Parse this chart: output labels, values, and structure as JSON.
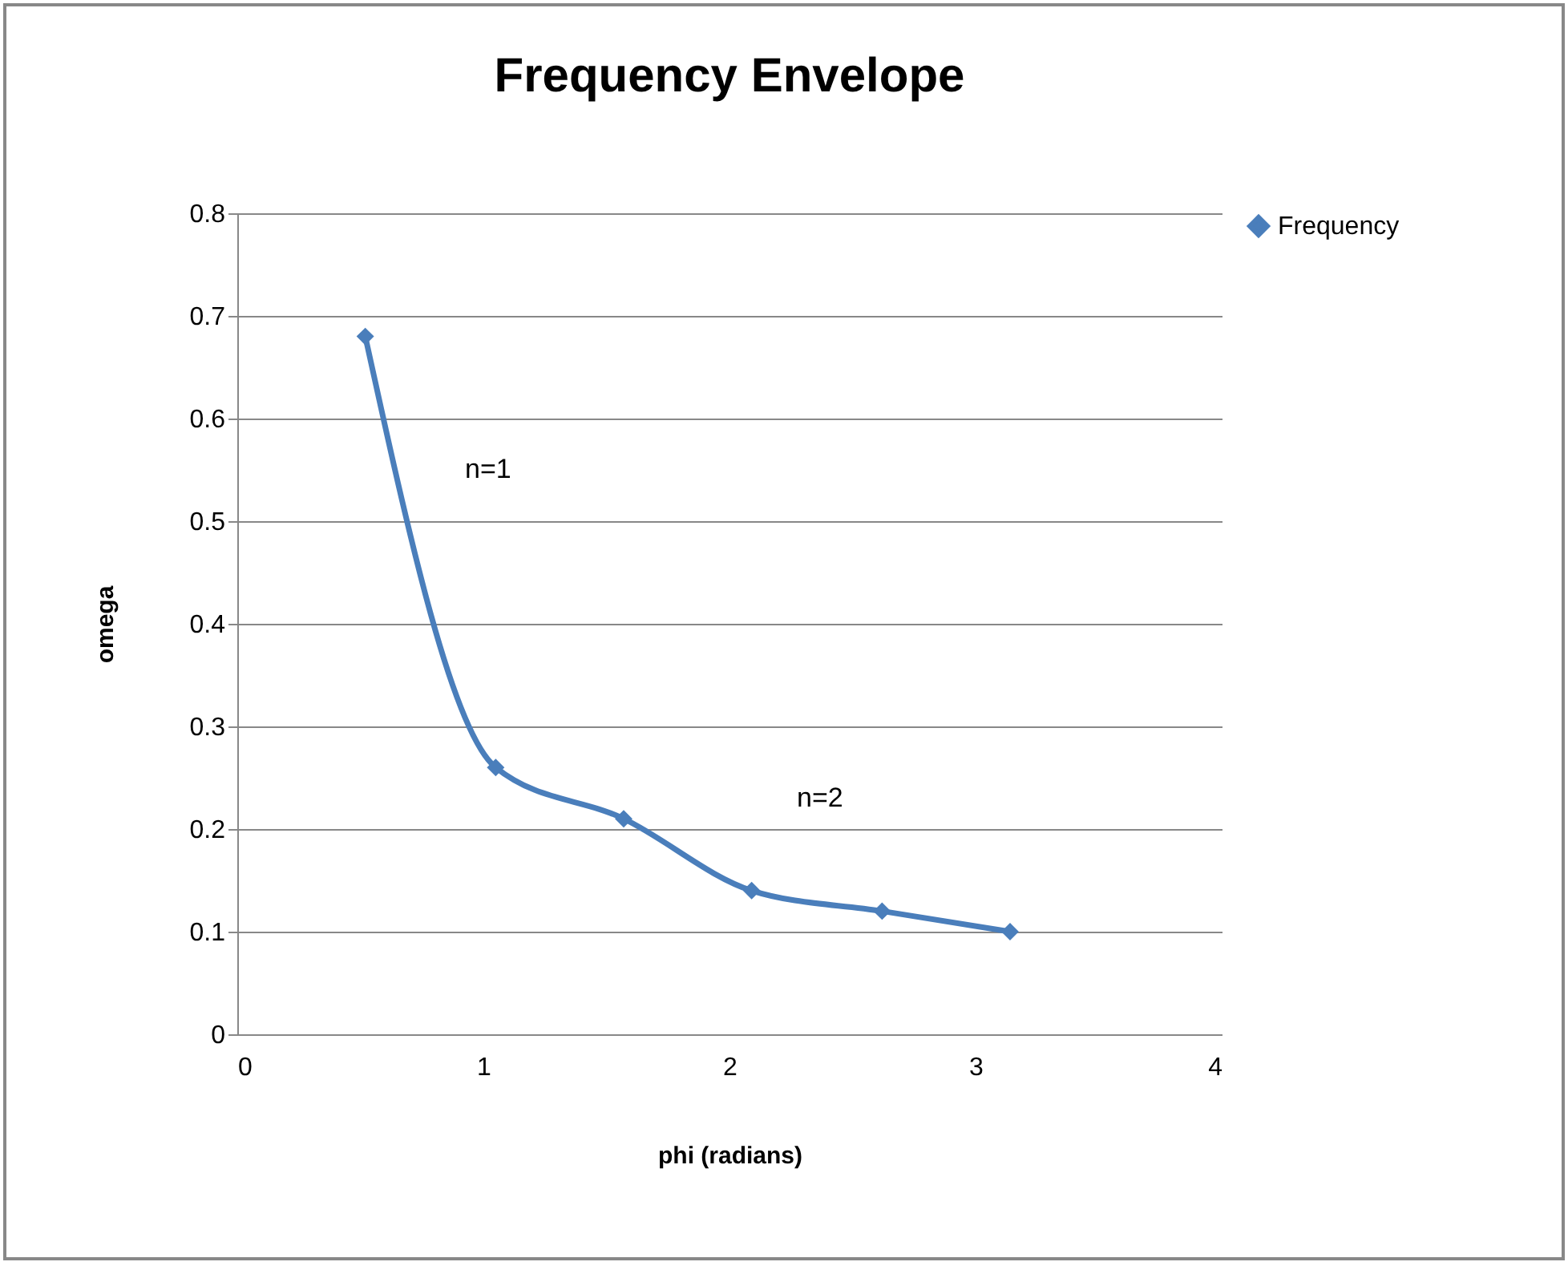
{
  "chart_data": {
    "type": "line",
    "title": "Frequency Envelope",
    "xlabel": "phi (radians)",
    "ylabel": "omega",
    "x": [
      0.52,
      1.05,
      1.57,
      2.09,
      2.62,
      3.14
    ],
    "series": [
      {
        "name": "Frequency",
        "color": "#4a7ebb",
        "values": [
          0.68,
          0.26,
          0.21,
          0.14,
          0.12,
          0.1
        ]
      }
    ],
    "xlim": [
      0,
      4
    ],
    "xticks": [
      0,
      1,
      2,
      3,
      4
    ],
    "ylim": [
      0,
      0.8
    ],
    "yticks": [
      0,
      0.1,
      0.2,
      0.3,
      0.4,
      0.5,
      0.6,
      0.7,
      0.8
    ],
    "grid": "y",
    "legend": "right",
    "marker": "diamond",
    "line_style": "solid",
    "annotations": [
      "n=1",
      "n=2"
    ]
  }
}
